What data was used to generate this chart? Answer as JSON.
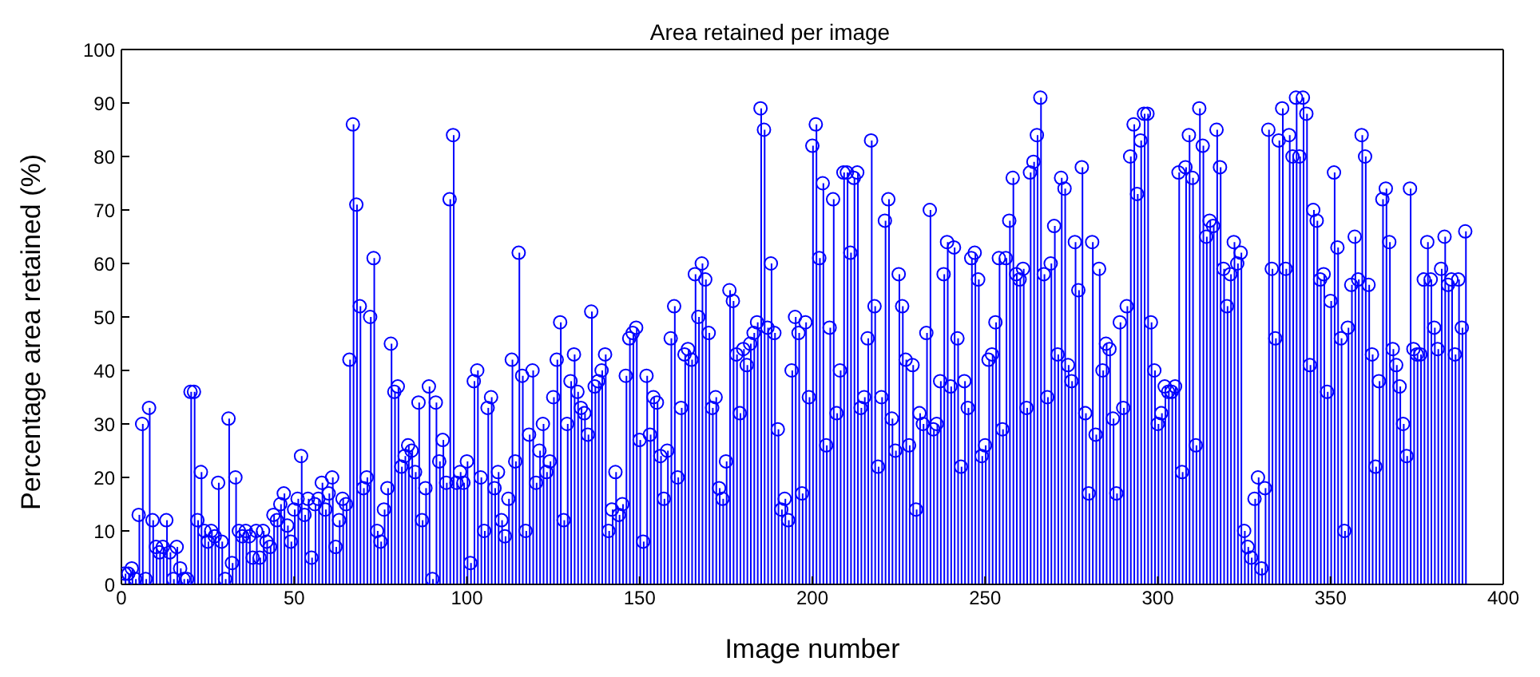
{
  "chart_data": {
    "type": "lollipop",
    "title": "Area retained per image",
    "xlabel": "Image number",
    "ylabel": "Percentage area retained (%)",
    "xlim": [
      0,
      400
    ],
    "xticks": [
      0,
      50,
      100,
      150,
      200,
      250,
      300,
      350,
      400
    ],
    "ylim": [
      0,
      100
    ],
    "yticks": [
      0,
      10,
      20,
      30,
      40,
      50,
      60,
      70,
      80,
      90,
      100
    ],
    "marker": "circle",
    "series": [
      {
        "color": "#0000ff",
        "x": [
          1,
          2,
          3,
          4,
          5,
          6,
          7,
          8,
          9,
          10,
          11,
          12,
          13,
          14,
          15,
          16,
          17,
          18,
          19,
          20,
          21,
          22,
          23,
          24,
          25,
          26,
          27,
          28,
          29,
          30,
          31,
          32,
          33,
          34,
          35,
          36,
          37,
          38,
          39,
          40,
          41,
          42,
          43,
          44,
          45,
          46,
          47,
          48,
          49,
          50,
          51,
          52,
          53,
          54,
          55,
          56,
          57,
          58,
          59,
          60,
          61,
          62,
          63,
          64,
          65,
          66,
          67,
          68,
          69,
          70,
          71,
          72,
          73,
          74,
          75,
          76,
          77,
          78,
          79,
          80,
          81,
          82,
          83,
          84,
          85,
          86,
          87,
          88,
          89,
          90,
          91,
          92,
          93,
          94,
          95,
          96,
          97,
          98,
          99,
          100,
          101,
          102,
          103,
          104,
          105,
          106,
          107,
          108,
          109,
          110,
          111,
          112,
          113,
          114,
          115,
          116,
          117,
          118,
          119,
          120,
          121,
          122,
          123,
          124,
          125,
          126,
          127,
          128,
          129,
          130,
          131,
          132,
          133,
          134,
          135,
          136,
          137,
          138,
          139,
          140,
          141,
          142,
          143,
          144,
          145,
          146,
          147,
          148,
          149,
          150,
          151,
          152,
          153,
          154,
          155,
          156,
          157,
          158,
          159,
          160,
          161,
          162,
          163,
          164,
          165,
          166,
          167,
          168,
          169,
          170,
          171,
          172,
          173,
          174,
          175,
          176,
          177,
          178,
          179,
          180,
          181,
          182,
          183,
          184,
          185,
          186,
          187,
          188,
          189,
          190,
          191,
          192,
          193,
          194,
          195,
          196,
          197,
          198,
          199,
          200,
          201,
          202,
          203,
          204,
          205,
          206,
          207,
          208,
          209,
          210,
          211,
          212,
          213,
          214,
          215,
          216,
          217,
          218,
          219,
          220,
          221,
          222,
          223,
          224,
          225,
          226,
          227,
          228,
          229,
          230,
          231,
          232,
          233,
          234,
          235,
          236,
          237,
          238,
          239,
          240,
          241,
          242,
          243,
          244,
          245,
          246,
          247,
          248,
          249,
          250,
          251,
          252,
          253,
          254,
          255,
          256,
          257,
          258,
          259,
          260,
          261,
          262,
          263,
          264,
          265,
          266,
          267,
          268,
          269,
          270,
          271,
          272,
          273,
          274,
          275,
          276,
          277,
          278,
          279,
          280,
          281,
          282,
          283,
          284,
          285,
          286,
          287,
          288,
          289,
          290,
          291,
          292,
          293,
          294,
          295,
          296,
          297,
          298,
          299,
          300,
          301,
          302,
          303,
          304,
          305,
          306,
          307,
          308,
          309,
          310,
          311,
          312,
          313,
          314,
          315,
          316,
          317,
          318,
          319,
          320,
          321,
          322,
          323,
          324,
          325,
          326,
          327,
          328,
          329,
          330,
          331,
          332,
          333,
          334,
          335,
          336,
          337,
          338,
          339,
          340,
          341,
          342,
          343,
          344,
          345,
          346,
          347,
          348,
          349,
          350,
          351,
          352,
          353,
          354,
          355,
          356,
          357,
          358,
          359,
          360,
          361,
          362,
          363,
          364,
          365,
          366,
          367,
          368,
          369,
          370,
          371,
          372,
          373,
          374,
          375,
          376,
          377,
          378,
          379,
          380,
          381,
          382,
          383,
          384,
          385,
          386,
          387,
          388,
          389
        ],
        "values": [
          2,
          2,
          3,
          1,
          13,
          30,
          1,
          33,
          12,
          7,
          6,
          7,
          12,
          6,
          1,
          7,
          3,
          1,
          1,
          36,
          36,
          12,
          21,
          10,
          8,
          10,
          9,
          19,
          8,
          1,
          31,
          4,
          20,
          10,
          9,
          10,
          9,
          5,
          10,
          5,
          10,
          8,
          7,
          13,
          12,
          15,
          17,
          11,
          8,
          14,
          16,
          24,
          13,
          16,
          5,
          15,
          16,
          19,
          14,
          17,
          20,
          7,
          12,
          16,
          15,
          42,
          86,
          71,
          52,
          18,
          20,
          50,
          61,
          10,
          8,
          14,
          18,
          45,
          36,
          37,
          22,
          24,
          26,
          25,
          21,
          34,
          12,
          18,
          37,
          1,
          34,
          23,
          27,
          19,
          72,
          84,
          19,
          21,
          19,
          23,
          4,
          38,
          40,
          20,
          10,
          33,
          35,
          18,
          21,
          12,
          9,
          16,
          42,
          23,
          62,
          39,
          10,
          28,
          40,
          19,
          25,
          30,
          21,
          23,
          35,
          42,
          49,
          12,
          30,
          38,
          43,
          36,
          33,
          32,
          28,
          51,
          37,
          38,
          40,
          43,
          10,
          14,
          21,
          13,
          15,
          39,
          46,
          47,
          48,
          27,
          8,
          39,
          28,
          35,
          34,
          24,
          16,
          25,
          46,
          52,
          20,
          33,
          43,
          44,
          42,
          58,
          50,
          60,
          57,
          47,
          33,
          35,
          18,
          16,
          23,
          55,
          53,
          43,
          32,
          44,
          41,
          45,
          47,
          49,
          89,
          85,
          48,
          60,
          47,
          29,
          14,
          16,
          12,
          40,
          50,
          47,
          17,
          49,
          35,
          82,
          86,
          61,
          75,
          26,
          48,
          72,
          32,
          40,
          77,
          77,
          62,
          76,
          77,
          33,
          35,
          46,
          83,
          52,
          22,
          35,
          68,
          72,
          31,
          25,
          58,
          52,
          42,
          26,
          41,
          14,
          32,
          30,
          47,
          70,
          29,
          30,
          38,
          58,
          64,
          37,
          63,
          46,
          22,
          38,
          33,
          61,
          62,
          57,
          24,
          26,
          42,
          43,
          49,
          61,
          29,
          61,
          68,
          76,
          58,
          57,
          59,
          33,
          77,
          79,
          84,
          91,
          58,
          35,
          60,
          67,
          43,
          76,
          74,
          41,
          38,
          64,
          55,
          78,
          32,
          17,
          64,
          28,
          59,
          40,
          45,
          44,
          31,
          17,
          49,
          33,
          52,
          80,
          86,
          73,
          83,
          88,
          88,
          49,
          40,
          30,
          32,
          37,
          36,
          36,
          37,
          77,
          21,
          78,
          84,
          76,
          26,
          89,
          82,
          65,
          68,
          67,
          85,
          78,
          59,
          52,
          58,
          64,
          60,
          62,
          10,
          7,
          5,
          16,
          20,
          3,
          18,
          85,
          59,
          46,
          83,
          89,
          59,
          84,
          80,
          91,
          80,
          91,
          88,
          41,
          70,
          68,
          57,
          58,
          36,
          53,
          77,
          63,
          46,
          10,
          48,
          56,
          65,
          57,
          84,
          80,
          56,
          43,
          22,
          38,
          72,
          74,
          64,
          44,
          41,
          37,
          30,
          24,
          74,
          44,
          43,
          43,
          57,
          64,
          57,
          48,
          44,
          59,
          65,
          56,
          57,
          43,
          57,
          48,
          66
        ]
      }
    ]
  }
}
